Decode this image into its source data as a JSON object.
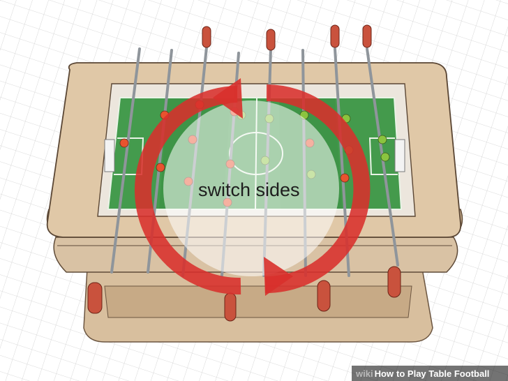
{
  "illustration": {
    "caption": "switch sides",
    "arrows_icon": "circular-arrows-icon",
    "colors": {
      "floor_grid": "#c8c8c8",
      "wood": "#dcc3a2",
      "wood_dark": "#b6997a",
      "field": "#3d9145",
      "field_light": "#4fa356",
      "red_team": "#e8532e",
      "green_team": "#8bc43f",
      "arrow_red": "#d8302c",
      "handle": "#c9523d",
      "rod": "#9ea3a8"
    }
  },
  "watermark": {
    "brand": "wiki",
    "how": "How",
    "title": "to Play Table Football"
  }
}
